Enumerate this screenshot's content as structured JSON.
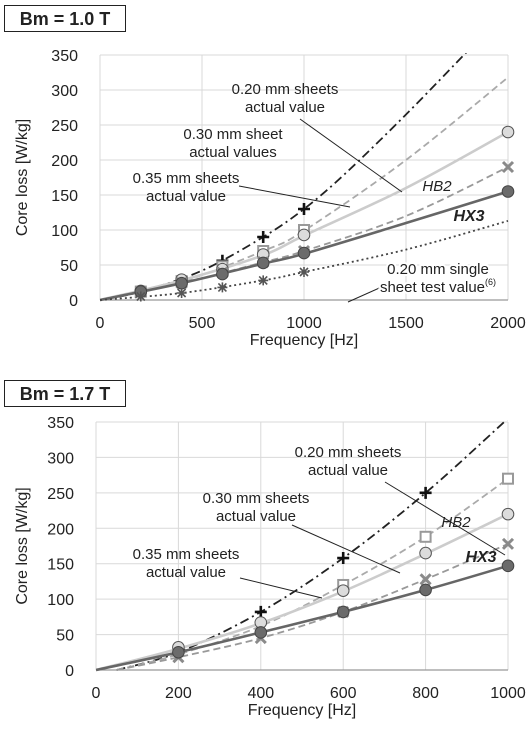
{
  "chart_data": [
    {
      "type": "line",
      "title": "Bm = 1.0 T",
      "xlabel": "Frequency [Hz]",
      "ylabel": "Core loss [W/kg]",
      "xlim": [
        0,
        2000
      ],
      "ylim": [
        0,
        350
      ],
      "x_ticks": [
        "0",
        "500",
        "1000",
        "1500",
        "2000"
      ],
      "y_ticks": [
        "0",
        "50",
        "100",
        "150",
        "200",
        "250",
        "300",
        "350"
      ],
      "grid": true,
      "series": [
        {
          "marker": "plus",
          "color": "#222222",
          "dash": "dashdot",
          "points": [
            [
              200,
              12
            ],
            [
              400,
              28
            ],
            [
              600,
              56
            ],
            [
              800,
              90
            ],
            [
              1000,
              130
            ]
          ],
          "curve": [
            [
              0,
              0
            ],
            [
              200,
              12
            ],
            [
              500,
              42
            ],
            [
              800,
              90
            ],
            [
              1000,
              130
            ],
            [
              1200,
              180
            ],
            [
              1500,
              265
            ],
            [
              1800,
              355
            ]
          ]
        },
        {
          "marker": "square",
          "color": "#aaaaaa",
          "dash": "dash",
          "points": [
            [
              200,
              12
            ],
            [
              400,
              27
            ],
            [
              600,
              48
            ],
            [
              800,
              70
            ],
            [
              1000,
              100
            ]
          ],
          "curve": [
            [
              0,
              0
            ],
            [
              400,
              26
            ],
            [
              800,
              70
            ],
            [
              1000,
              99
            ],
            [
              1500,
              200
            ],
            [
              2000,
              318
            ]
          ]
        },
        {
          "marker": "circle-light",
          "color": "#cccccc",
          "dash": "solid",
          "points": [
            [
              200,
              13
            ],
            [
              400,
              29
            ],
            [
              600,
              44
            ],
            [
              800,
              65
            ],
            [
              1000,
              93
            ],
            [
              2000,
              240
            ]
          ],
          "curve": [
            [
              0,
              0
            ],
            [
              400,
              28
            ],
            [
              800,
              64
            ],
            [
              1000,
              92
            ],
            [
              1500,
              160
            ],
            [
              2000,
              240
            ]
          ]
        },
        {
          "marker": "x",
          "color": "#999999",
          "dash": "dash",
          "points": [
            [
              200,
              12
            ],
            [
              400,
              24
            ],
            [
              600,
              39
            ],
            [
              800,
              54
            ],
            [
              1000,
              70
            ],
            [
              2000,
              190
            ]
          ],
          "curve": [
            [
              0,
              0
            ],
            [
              400,
              24
            ],
            [
              800,
              54
            ],
            [
              1000,
              70
            ],
            [
              1500,
              120
            ],
            [
              2000,
              190
            ]
          ]
        },
        {
          "marker": "circle-dark",
          "color": "#666666",
          "dash": "solid",
          "points": [
            [
              200,
              12
            ],
            [
              400,
              24
            ],
            [
              600,
              37
            ],
            [
              800,
              53
            ],
            [
              1000,
              67
            ],
            [
              2000,
              155
            ]
          ],
          "curve": [
            [
              0,
              0
            ],
            [
              400,
              24
            ],
            [
              800,
              52
            ],
            [
              1000,
              66
            ],
            [
              1500,
              110
            ],
            [
              2000,
              155
            ]
          ]
        },
        {
          "marker": "asterisk",
          "color": "#444444",
          "dash": "dot",
          "points": [
            [
              200,
              5
            ],
            [
              400,
              10
            ],
            [
              600,
              18
            ],
            [
              800,
              28
            ],
            [
              1000,
              40
            ]
          ],
          "curve": [
            [
              0,
              0
            ],
            [
              400,
              10
            ],
            [
              800,
              28
            ],
            [
              1000,
              40
            ],
            [
              1500,
              72
            ],
            [
              2000,
              113
            ]
          ]
        }
      ],
      "annotations": [
        {
          "lines": [
            "0.20 mm sheets",
            "actual value"
          ]
        },
        {
          "lines": [
            "0.30 mm sheet",
            "actual values"
          ]
        },
        {
          "lines": [
            "0.35 mm  sheets",
            "actual value"
          ]
        },
        {
          "lines": [
            "HB2"
          ]
        },
        {
          "lines": [
            "HX3"
          ]
        },
        {
          "lines": [
            "0.20 mm single",
            "sheet test value"
          ],
          "superscript": "(6)"
        }
      ]
    },
    {
      "type": "line",
      "title": "Bm = 1.7 T",
      "xlabel": "Frequency [Hz]",
      "ylabel": "Core loss [W/kg]",
      "xlim": [
        0,
        1000
      ],
      "ylim": [
        0,
        350
      ],
      "x_ticks": [
        "0",
        "200",
        "400",
        "600",
        "800",
        "1000"
      ],
      "y_ticks": [
        "0",
        "50",
        "100",
        "150",
        "200",
        "250",
        "300",
        "350"
      ],
      "grid": true,
      "series": [
        {
          "marker": "plus",
          "color": "#222222",
          "dash": "dashdot",
          "points": [
            [
              400,
              82
            ],
            [
              600,
              158
            ],
            [
              800,
              250
            ]
          ],
          "curve": [
            [
              50,
              0
            ],
            [
              200,
              25
            ],
            [
              400,
              82
            ],
            [
              600,
              158
            ],
            [
              800,
              250
            ],
            [
              1000,
              355
            ]
          ]
        },
        {
          "marker": "square",
          "color": "#aaaaaa",
          "dash": "dash",
          "points": [
            [
              600,
              120
            ],
            [
              800,
              188
            ],
            [
              1000,
              270
            ]
          ],
          "curve": [
            [
              50,
              0
            ],
            [
              200,
              22
            ],
            [
              400,
              62
            ],
            [
              600,
              120
            ],
            [
              800,
              188
            ],
            [
              1000,
              270
            ]
          ]
        },
        {
          "marker": "circle-light",
          "color": "#cccccc",
          "dash": "solid",
          "points": [
            [
              200,
              32
            ],
            [
              400,
              67
            ],
            [
              600,
              112
            ],
            [
              800,
              165
            ],
            [
              1000,
              220
            ]
          ],
          "curve": [
            [
              0,
              0
            ],
            [
              200,
              30
            ],
            [
              400,
              66
            ],
            [
              600,
              111
            ],
            [
              800,
              164
            ],
            [
              1000,
              220
            ]
          ]
        },
        {
          "marker": "x",
          "color": "#999999",
          "dash": "dash",
          "points": [
            [
              200,
              18
            ],
            [
              400,
              45
            ],
            [
              600,
              82
            ],
            [
              800,
              128
            ],
            [
              1000,
              178
            ]
          ],
          "curve": [
            [
              50,
              0
            ],
            [
              200,
              18
            ],
            [
              400,
              45
            ],
            [
              600,
              82
            ],
            [
              800,
              128
            ],
            [
              1000,
              178
            ]
          ]
        },
        {
          "marker": "circle-dark",
          "color": "#666666",
          "dash": "solid",
          "points": [
            [
              200,
              25
            ],
            [
              400,
              53
            ],
            [
              600,
              82
            ],
            [
              800,
              113
            ],
            [
              1000,
              147
            ]
          ],
          "curve": [
            [
              0,
              0
            ],
            [
              200,
              25
            ],
            [
              400,
              53
            ],
            [
              600,
              82
            ],
            [
              800,
              113
            ],
            [
              1000,
              147
            ]
          ]
        }
      ],
      "annotations": [
        {
          "lines": [
            "0.20 mm sheets",
            "actual value"
          ]
        },
        {
          "lines": [
            "0.30 mm sheets",
            "actual value"
          ]
        },
        {
          "lines": [
            "0.35 mm sheets",
            "actual value"
          ]
        },
        {
          "lines": [
            "HB2"
          ]
        },
        {
          "lines": [
            "HX3"
          ]
        }
      ]
    }
  ]
}
